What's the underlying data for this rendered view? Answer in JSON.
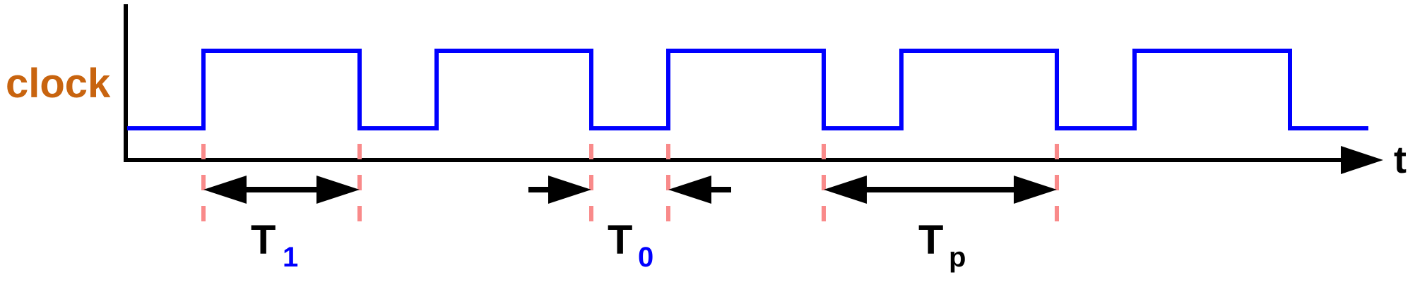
{
  "signal": {
    "label": "clock",
    "label_color": "#c8640f",
    "wave_color": "#0000ff"
  },
  "axis": {
    "time_label": "t",
    "color": "#000000"
  },
  "guides": {
    "color": "#f98a8a"
  },
  "intervals": {
    "high": {
      "main": "T",
      "sub": "1"
    },
    "low": {
      "main": "T",
      "sub": "0"
    },
    "period": {
      "main": "T",
      "sub": "p"
    }
  },
  "colors": {
    "subscript_blue": "#0000ff",
    "subscript_black": "#000000"
  }
}
